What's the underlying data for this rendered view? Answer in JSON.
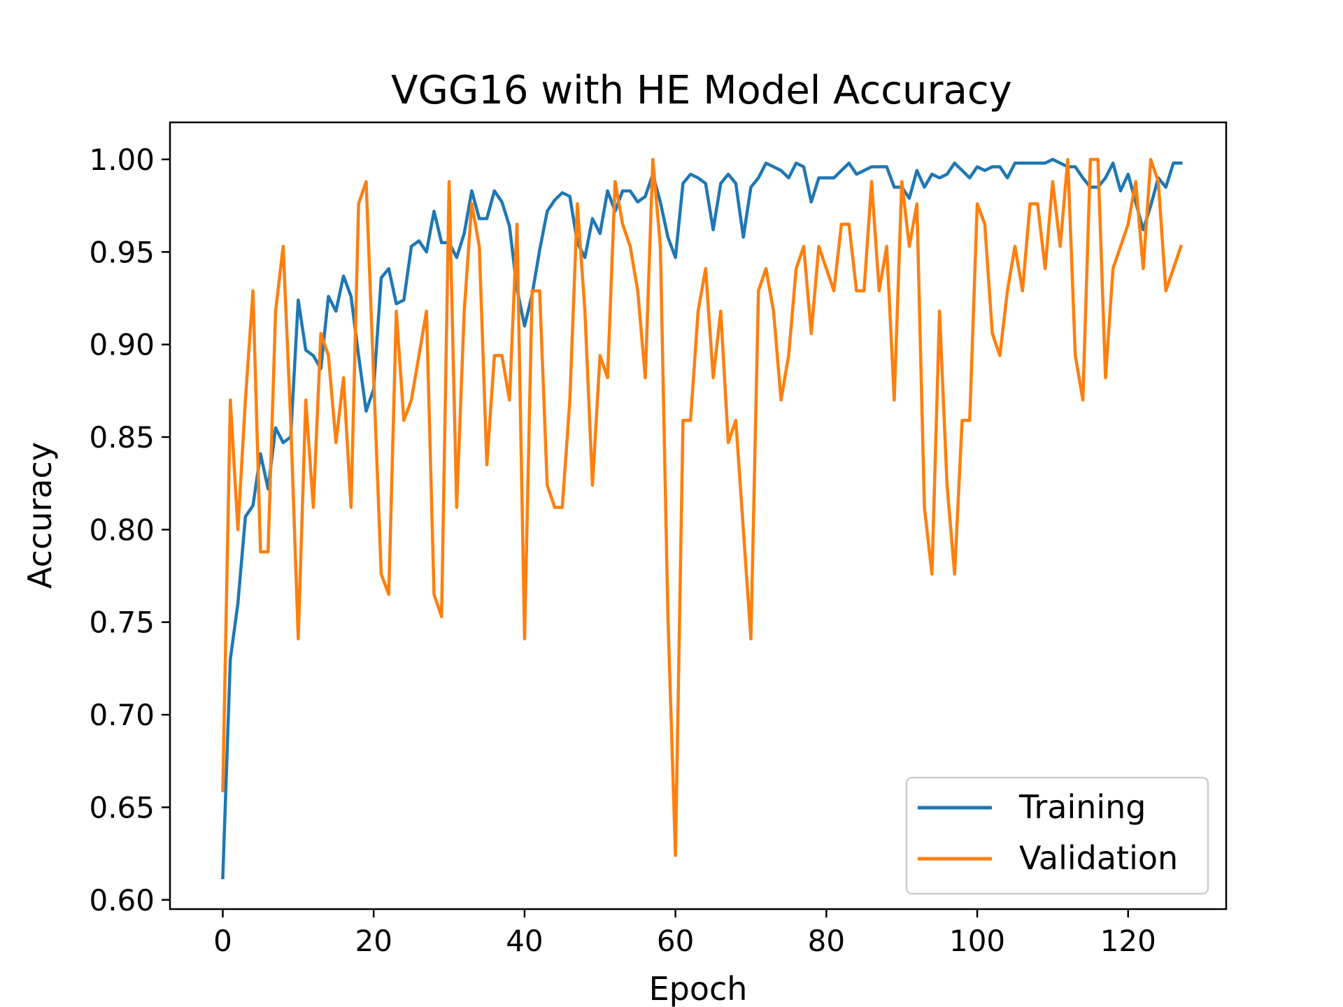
{
  "chart_data": {
    "type": "line",
    "title": "VGG16 with HE Model Accuracy",
    "xlabel": "Epoch",
    "ylabel": "Accuracy",
    "xlim": [
      -7,
      133
    ],
    "ylim": [
      0.595,
      1.02
    ],
    "x_ticks": [
      0,
      20,
      40,
      60,
      80,
      100,
      120
    ],
    "y_ticks": [
      0.6,
      0.65,
      0.7,
      0.75,
      0.8,
      0.85,
      0.9,
      0.95,
      1.0
    ],
    "x_tick_labels": [
      "0",
      "20",
      "40",
      "60",
      "80",
      "100",
      "120"
    ],
    "y_tick_labels": [
      "0.60",
      "0.65",
      "0.70",
      "0.75",
      "0.80",
      "0.85",
      "0.90",
      "0.95",
      "1.00"
    ],
    "grid": false,
    "legend_position": "lower-right",
    "series": [
      {
        "name": "Training",
        "color": "#1f77b4",
        "x_start": 0,
        "values": [
          0.612,
          0.73,
          0.76,
          0.807,
          0.813,
          0.841,
          0.822,
          0.855,
          0.847,
          0.85,
          0.924,
          0.897,
          0.894,
          0.887,
          0.926,
          0.918,
          0.937,
          0.926,
          0.894,
          0.864,
          0.876,
          0.936,
          0.941,
          0.922,
          0.924,
          0.953,
          0.956,
          0.95,
          0.972,
          0.955,
          0.955,
          0.947,
          0.96,
          0.983,
          0.968,
          0.968,
          0.983,
          0.977,
          0.964,
          0.93,
          0.91,
          0.927,
          0.951,
          0.972,
          0.978,
          0.982,
          0.98,
          0.955,
          0.947,
          0.968,
          0.96,
          0.983,
          0.972,
          0.983,
          0.983,
          0.977,
          0.98,
          0.992,
          0.977,
          0.958,
          0.947,
          0.987,
          0.992,
          0.99,
          0.987,
          0.962,
          0.987,
          0.992,
          0.987,
          0.958,
          0.985,
          0.99,
          0.998,
          0.996,
          0.994,
          0.99,
          0.998,
          0.996,
          0.977,
          0.99,
          0.99,
          0.99,
          0.994,
          0.998,
          0.992,
          0.994,
          0.996,
          0.996,
          0.996,
          0.985,
          0.985,
          0.979,
          0.994,
          0.985,
          0.992,
          0.99,
          0.992,
          0.998,
          0.994,
          0.99,
          0.996,
          0.994,
          0.996,
          0.996,
          0.99,
          0.998,
          0.998,
          0.998,
          0.998,
          0.998,
          1.0,
          0.998,
          0.996,
          0.996,
          0.99,
          0.985,
          0.985,
          0.99,
          0.998,
          0.983,
          0.992,
          0.977,
          0.962,
          0.975,
          0.99,
          0.985,
          0.998,
          0.998
        ]
      },
      {
        "name": "Validation",
        "color": "#ff7f0e",
        "x_start": 0,
        "values": [
          0.659,
          0.87,
          0.8,
          0.87,
          0.929,
          0.788,
          0.788,
          0.918,
          0.953,
          0.859,
          0.741,
          0.87,
          0.812,
          0.906,
          0.894,
          0.847,
          0.882,
          0.812,
          0.976,
          0.988,
          0.882,
          0.776,
          0.765,
          0.918,
          0.859,
          0.87,
          0.894,
          0.918,
          0.765,
          0.753,
          0.988,
          0.812,
          0.918,
          0.976,
          0.953,
          0.835,
          0.894,
          0.894,
          0.87,
          0.965,
          0.741,
          0.929,
          0.929,
          0.824,
          0.812,
          0.812,
          0.87,
          0.976,
          0.918,
          0.824,
          0.894,
          0.882,
          0.988,
          0.965,
          0.953,
          0.929,
          0.882,
          1.0,
          0.953,
          0.753,
          0.624,
          0.859,
          0.859,
          0.918,
          0.941,
          0.882,
          0.918,
          0.847,
          0.859,
          0.8,
          0.741,
          0.929,
          0.941,
          0.918,
          0.87,
          0.894,
          0.941,
          0.953,
          0.906,
          0.953,
          0.941,
          0.929,
          0.965,
          0.965,
          0.929,
          0.929,
          0.988,
          0.929,
          0.953,
          0.87,
          0.988,
          0.953,
          0.976,
          0.812,
          0.776,
          0.918,
          0.824,
          0.776,
          0.859,
          0.859,
          0.976,
          0.965,
          0.906,
          0.894,
          0.929,
          0.953,
          0.929,
          0.976,
          0.976,
          0.941,
          0.988,
          0.953,
          1.0,
          0.894,
          0.87,
          1.0,
          1.0,
          0.882,
          0.941,
          0.953,
          0.965,
          0.988,
          0.941,
          1.0,
          0.988,
          0.929,
          0.941,
          0.953
        ]
      }
    ]
  }
}
